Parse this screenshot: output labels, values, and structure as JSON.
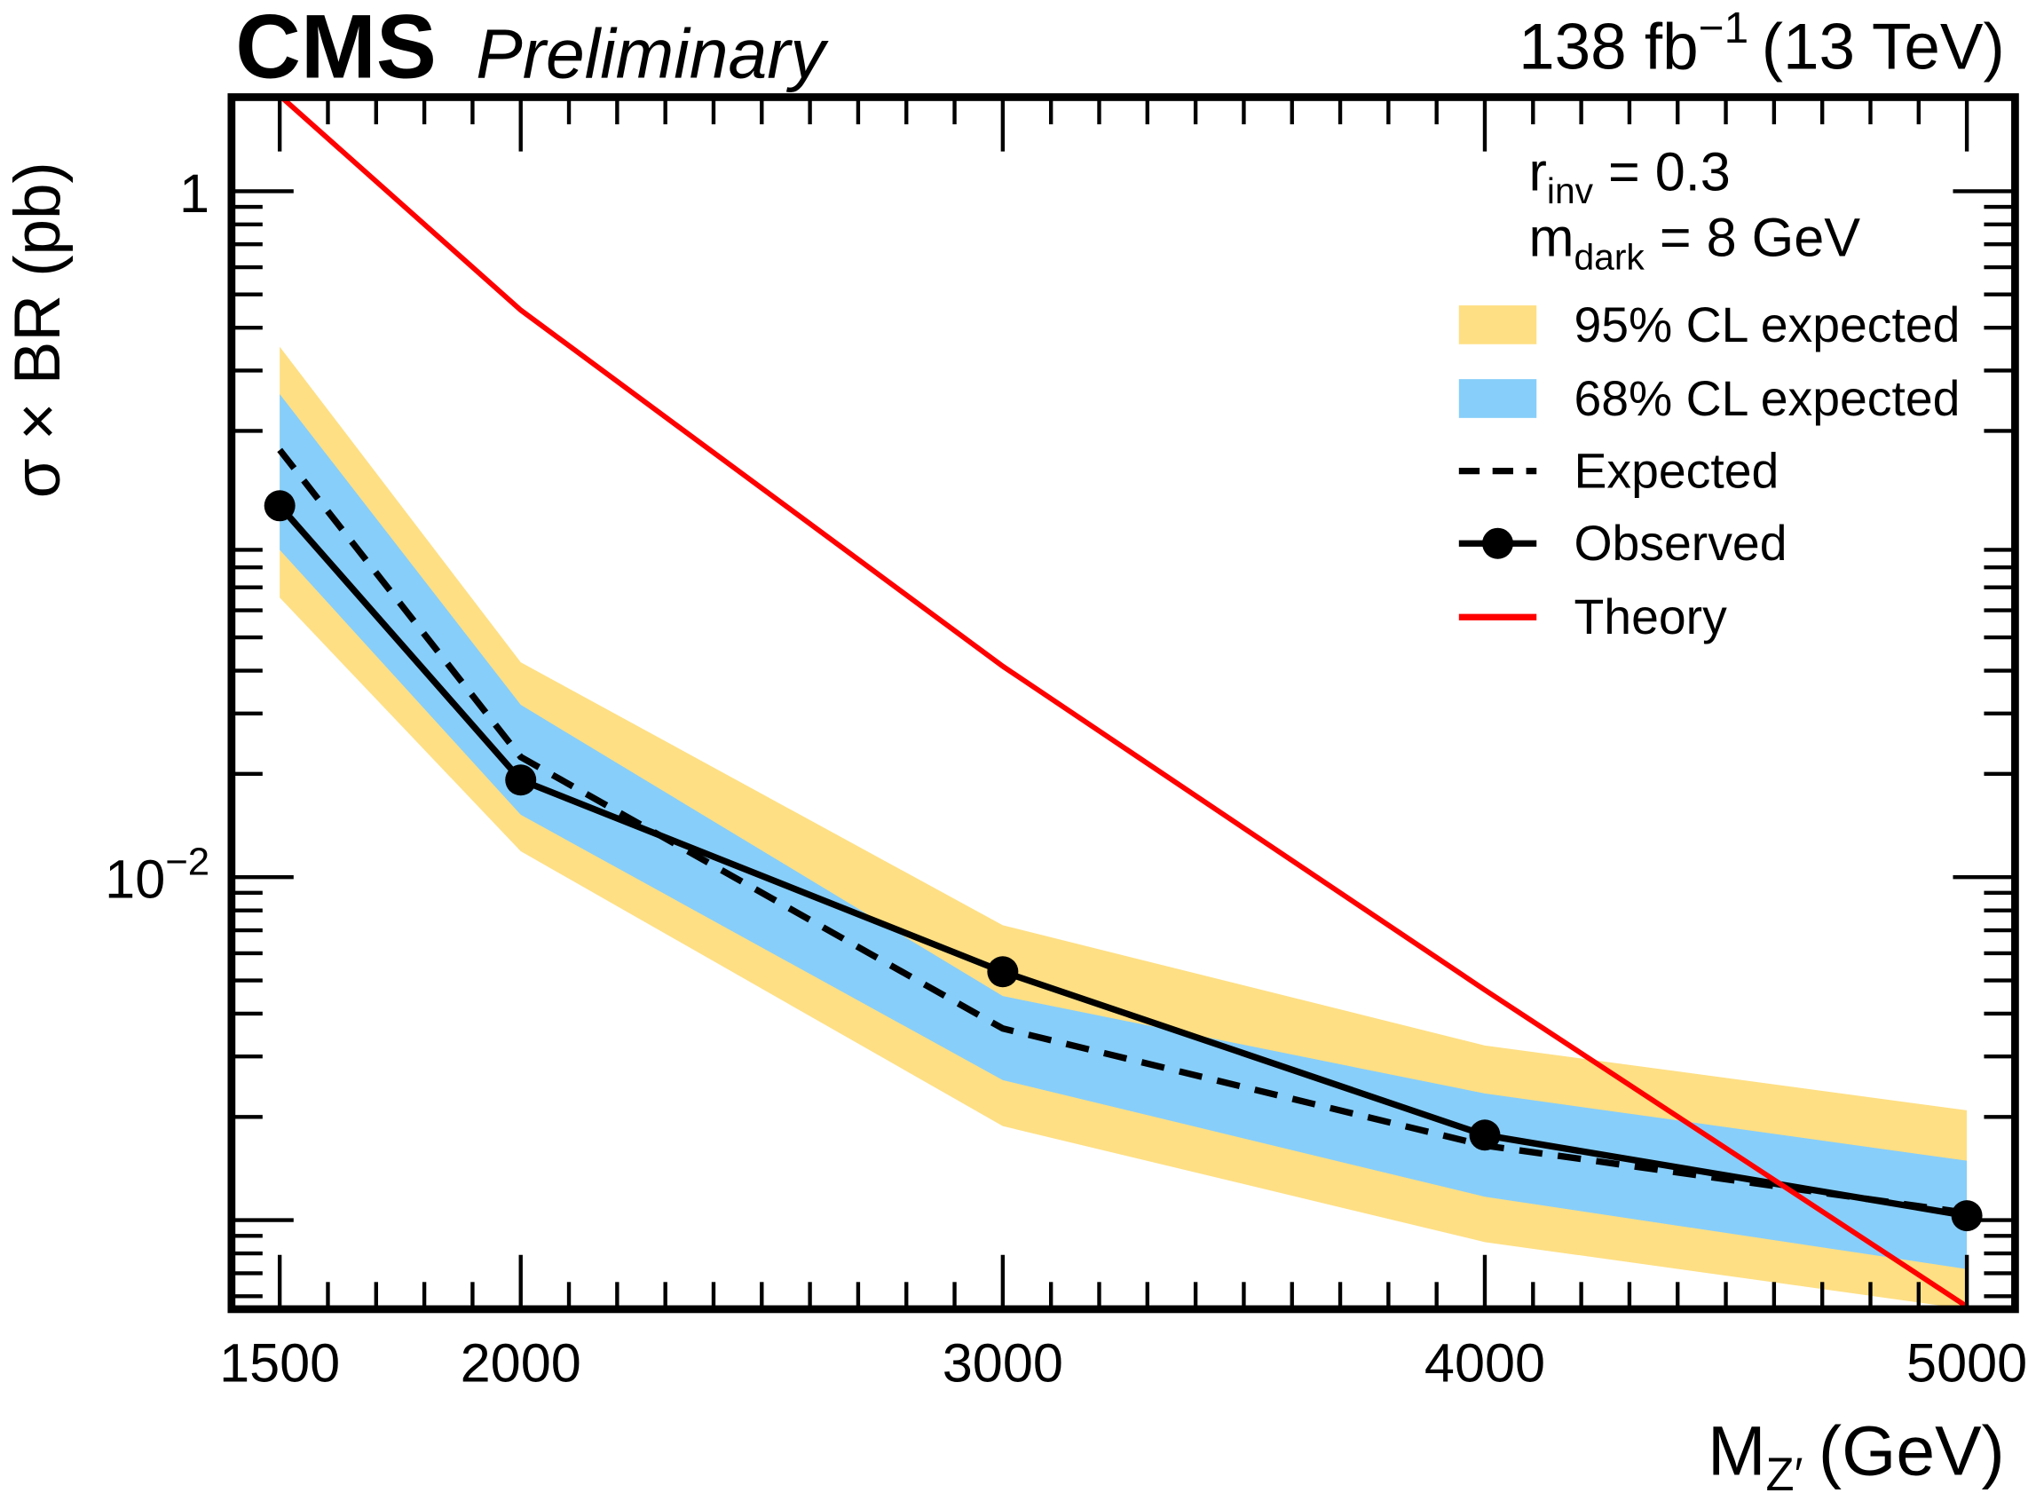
{
  "header": {
    "experiment": "CMS",
    "status": "Preliminary",
    "lumi_value": "138 fb",
    "lumi_exp": "−1",
    "energy": "(13 TeV)"
  },
  "colors": {
    "band95": "#FEDF84",
    "band68": "#87CEFA",
    "theory": "#FF0000",
    "line": "#000000"
  },
  "chart_data": {
    "type": "line",
    "title": "CMS Preliminary",
    "xlabel_main": "M",
    "xlabel_sub": "Z′",
    "xlabel_unit": "(GeV)",
    "ylabel": "σ × BR (pb)",
    "xlim": [
      1400,
      5100
    ],
    "ylim": [
      0.00055,
      1.88
    ],
    "yscale": "log",
    "x_tick_labels": [
      "1500",
      "2000",
      "3000",
      "4000",
      "5000"
    ],
    "y_tick_labels": [
      {
        "value": 1,
        "label": "1"
      },
      {
        "value": 0.01,
        "label": "10",
        "exp": "−2"
      }
    ],
    "annotations": {
      "rinv_main": "r",
      "rinv_sub": "inv",
      "rinv_val": " = 0.3",
      "mdark_main": "m",
      "mdark_sub": "dark",
      "mdark_val": " = 8 GeV"
    },
    "legend": {
      "placement": "top-right",
      "entries": [
        "95% CL expected",
        "68% CL expected",
        "Expected",
        "Observed",
        "Theory"
      ]
    },
    "x": [
      1500,
      2000,
      3000,
      4000,
      5000
    ],
    "series": [
      {
        "name": "95% CL expected",
        "lo": [
          0.0653,
          0.0119,
          0.00188,
          0.000863,
          0.00055
        ],
        "hi": [
          0.352,
          0.0423,
          0.00724,
          0.00323,
          0.00209
        ]
      },
      {
        "name": "68% CL expected",
        "lo": [
          0.09,
          0.0152,
          0.00256,
          0.00117,
          0.00072
        ],
        "hi": [
          0.256,
          0.0318,
          0.0045,
          0.00234,
          0.00149
        ]
      },
      {
        "name": "Expected",
        "values": [
          0.176,
          0.0224,
          0.00362,
          0.00165,
          0.00105
        ]
      },
      {
        "name": "Observed",
        "values": [
          0.121,
          0.0192,
          0.0053,
          0.00177,
          0.00103
        ]
      },
      {
        "name": "Theory",
        "values": [
          1.9,
          0.45,
          0.0412,
          0.00469,
          0.00056
        ]
      }
    ]
  }
}
